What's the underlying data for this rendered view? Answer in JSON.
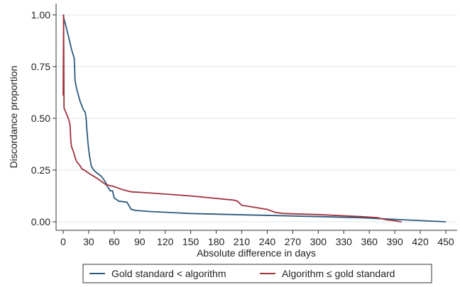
{
  "chart_data": {
    "type": "line",
    "xlabel": "Absolute difference in days",
    "ylabel": "Discordance proportion",
    "xlim": [
      0,
      450
    ],
    "ylim": [
      0,
      1
    ],
    "x_ticks": [
      0,
      30,
      60,
      90,
      120,
      150,
      180,
      210,
      240,
      270,
      300,
      330,
      360,
      390,
      420,
      450
    ],
    "y_ticks": [
      0,
      0.25,
      0.5,
      0.75,
      1.0
    ],
    "y_tick_labels": [
      "0.00",
      "0.25",
      "0.50",
      "0.75",
      "1.00"
    ],
    "grid": "horizontal",
    "legend_position": "bottom",
    "colors": {
      "Gold standard < algorithm": "#2b5a7e",
      "Algorithm ≤ gold standard": "#a0323c"
    },
    "series": [
      {
        "name": "Gold standard < algorithm",
        "color": "#2b5a7e",
        "x": [
          0,
          1,
          3,
          6,
          10,
          13,
          14,
          16,
          18,
          20,
          22,
          24,
          26,
          27,
          28,
          29,
          30,
          31,
          33,
          36,
          40,
          45,
          50,
          52,
          54,
          55,
          58,
          60,
          62,
          65,
          75,
          80,
          85,
          100,
          150,
          200,
          250,
          300,
          350,
          400,
          450
        ],
        "y": [
          1.0,
          0.98,
          0.95,
          0.9,
          0.83,
          0.79,
          0.68,
          0.64,
          0.61,
          0.58,
          0.56,
          0.54,
          0.53,
          0.5,
          0.44,
          0.39,
          0.35,
          0.32,
          0.27,
          0.25,
          0.235,
          0.22,
          0.19,
          0.17,
          0.16,
          0.15,
          0.15,
          0.115,
          0.11,
          0.1,
          0.095,
          0.06,
          0.055,
          0.05,
          0.04,
          0.035,
          0.03,
          0.025,
          0.02,
          0.01,
          0.0
        ]
      },
      {
        "name": "Algorithm ≤ gold standard",
        "color": "#a0323c",
        "x": [
          0,
          0.5,
          1,
          2,
          4,
          6,
          8,
          9,
          10,
          12,
          14,
          16,
          20,
          22,
          25,
          30,
          40,
          50,
          60,
          70,
          80,
          100,
          150,
          200,
          205,
          210,
          240,
          250,
          260,
          300,
          350,
          370,
          380,
          390,
          398
        ],
        "y": [
          0.61,
          1.0,
          0.55,
          0.54,
          0.52,
          0.5,
          0.47,
          0.39,
          0.36,
          0.34,
          0.31,
          0.29,
          0.27,
          0.255,
          0.25,
          0.235,
          0.21,
          0.18,
          0.17,
          0.155,
          0.145,
          0.14,
          0.125,
          0.105,
          0.1,
          0.08,
          0.06,
          0.045,
          0.04,
          0.035,
          0.025,
          0.02,
          0.01,
          0.005,
          0.0
        ]
      }
    ]
  }
}
